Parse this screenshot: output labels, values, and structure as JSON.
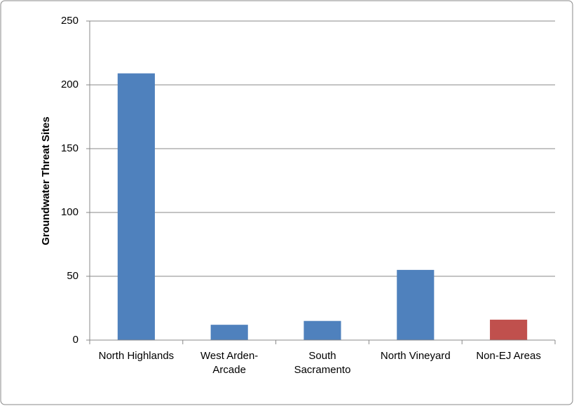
{
  "chart_data": {
    "type": "bar",
    "y_label": "Groundwater Threat Sites",
    "categories": [
      "North Highlands",
      "West Arden-Arcade",
      "South Sacramento",
      "North Vineyard",
      "Non-EJ Areas"
    ],
    "values": [
      209,
      12,
      15,
      55,
      16
    ],
    "colors": [
      "#4f81bd",
      "#4f81bd",
      "#4f81bd",
      "#4f81bd",
      "#c0504d"
    ],
    "ylim": [
      0,
      250
    ],
    "yticks": [
      0,
      50,
      100,
      150,
      200,
      250
    ],
    "grid": true
  }
}
